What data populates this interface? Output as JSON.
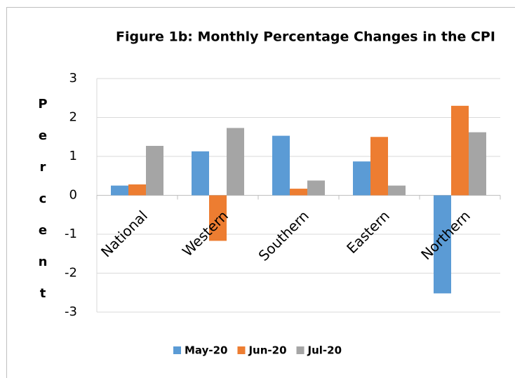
{
  "chart_data": {
    "type": "bar",
    "title": "Figure 1b: Monthly Percentage Changes in the CPI",
    "y_label": "Percent",
    "categories": [
      "National",
      "Western",
      "Southern",
      "Eastern",
      "Northern"
    ],
    "series": [
      {
        "name": "May-20",
        "color": "#5b9bd5",
        "values": [
          0.25,
          1.13,
          1.53,
          0.87,
          -2.52
        ]
      },
      {
        "name": "Jun-20",
        "color": "#ed7d31",
        "values": [
          0.28,
          -1.17,
          0.17,
          1.5,
          2.3
        ]
      },
      {
        "name": "Jul-20",
        "color": "#a5a5a5",
        "values": [
          1.27,
          1.73,
          0.38,
          0.25,
          1.62
        ]
      }
    ],
    "ylim": [
      -3,
      3
    ],
    "yticks": [
      -3,
      -2,
      -1,
      0,
      1,
      2,
      3
    ],
    "grid": true,
    "legend": "bottom"
  }
}
